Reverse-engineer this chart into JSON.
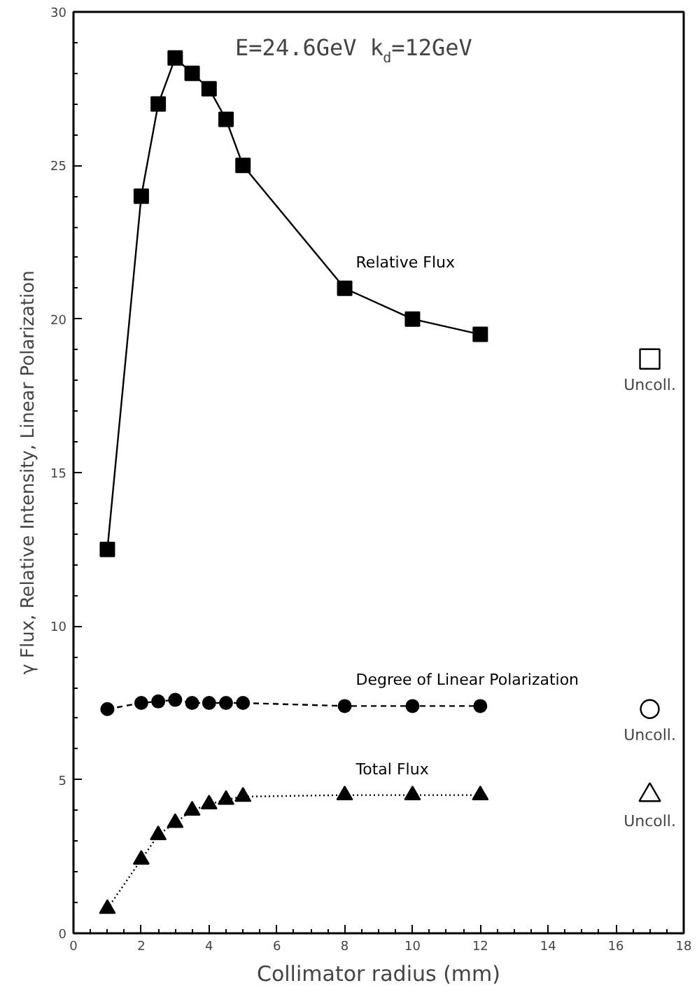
{
  "chart_data": {
    "type": "line",
    "title": "E=24.6GeV  k$_{d}$=12GeV",
    "xlabel": "Collimator radius (mm)",
    "ylabel": "γ Flux, Relative Intensity, Linear Polarization",
    "xlim": [
      0,
      18
    ],
    "ylim": [
      0,
      30
    ],
    "xticks": [
      0,
      2,
      4,
      6,
      8,
      10,
      12,
      14,
      16,
      18
    ],
    "yticks": [
      0,
      5,
      10,
      15,
      20,
      25,
      30
    ],
    "grid": false,
    "series": [
      {
        "name": "Relative Flux",
        "color": "#000000",
        "marker": "square",
        "line_style": "solid",
        "x": [
          1,
          2,
          2.5,
          3,
          3.5,
          4,
          4.5,
          5,
          8,
          10,
          12
        ],
        "values": [
          12.5,
          24,
          27,
          28.5,
          28,
          27.5,
          26.5,
          25,
          21,
          20,
          19.5
        ]
      },
      {
        "name": "Degree of Linear Polarization",
        "color": "#000000",
        "marker": "circle",
        "line_style": "dashed",
        "x": [
          1,
          2,
          2.5,
          3,
          3.5,
          4,
          4.5,
          5,
          8,
          10,
          12
        ],
        "values": [
          7.3,
          7.5,
          7.55,
          7.6,
          7.5,
          7.5,
          7.5,
          7.5,
          7.4,
          7.4,
          7.4
        ]
      },
      {
        "name": "Total Flux",
        "color": "#000000",
        "marker": "triangle",
        "line_style": "dotted",
        "x": [
          1,
          2,
          2.5,
          3,
          3.5,
          4,
          4.5,
          5,
          8,
          10,
          12
        ],
        "values": [
          0.8,
          2.4,
          3.2,
          3.6,
          4.0,
          4.2,
          4.35,
          4.45,
          4.5,
          4.5,
          4.5
        ]
      },
      {
        "type": "scatter",
        "color": "#000000",
        "marker": "square",
        "x": [
          17
        ],
        "values": [
          18.7
        ]
      },
      {
        "type": "scatter",
        "color": "#000000",
        "marker": "circle",
        "x": [
          17
        ],
        "values": [
          7.3
        ]
      },
      {
        "type": "scatter",
        "color": "#000000",
        "marker": "triangle",
        "x": [
          17
        ],
        "values": [
          4.5
        ]
      }
    ],
    "annotations": [
      "Uncoll.",
      "Uncoll.",
      "Uncoll."
    ]
  }
}
